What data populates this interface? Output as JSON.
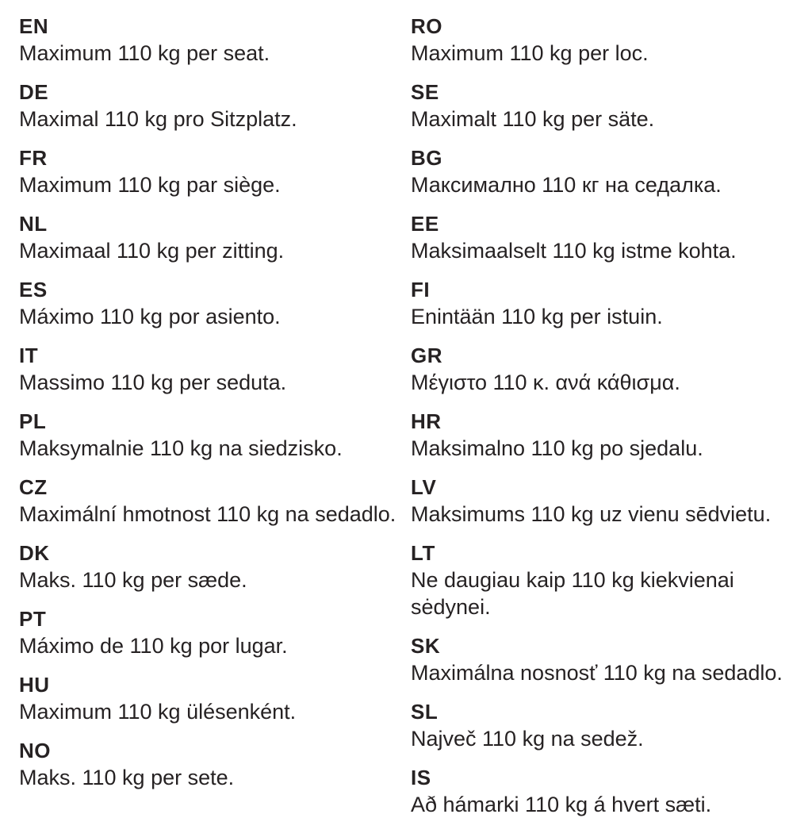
{
  "page": {
    "background_color": "#ffffff",
    "text_color": "#262223",
    "description": "Multilingual seat weight-limit notice"
  },
  "columns": {
    "left": [
      {
        "code": "EN",
        "text": "Maximum 110 kg per seat."
      },
      {
        "code": "DE",
        "text": "Maximal 110 kg pro Sitzplatz."
      },
      {
        "code": "FR",
        "text": "Maximum 110 kg par siège."
      },
      {
        "code": "NL",
        "text": "Maximaal 110 kg per zitting."
      },
      {
        "code": "ES",
        "text": "Máximo 110 kg por asiento."
      },
      {
        "code": "IT",
        "text": "Massimo 110 kg per seduta."
      },
      {
        "code": "PL",
        "text": "Maksymalnie 110 kg na siedzisko."
      },
      {
        "code": "CZ",
        "text": "Maximální hmotnost 110 kg na sedadlo."
      },
      {
        "code": "DK",
        "text": "Maks. 110 kg per sæde."
      },
      {
        "code": "PT",
        "text": "Máximo de 110 kg por lugar."
      },
      {
        "code": "HU",
        "text": "Maximum 110 kg ülésenként."
      },
      {
        "code": "NO",
        "text": "Maks. 110 kg per sete."
      }
    ],
    "right": [
      {
        "code": "RO",
        "text": "Maximum 110 kg per loc."
      },
      {
        "code": "SE",
        "text": "Maximalt 110 kg per säte."
      },
      {
        "code": "BG",
        "text": "Максимално 110 кг на седалка."
      },
      {
        "code": "EE",
        "text": "Maksimaalselt 110 kg istme kohta."
      },
      {
        "code": "FI",
        "text": "Enintään 110 kg per istuin."
      },
      {
        "code": "GR",
        "text": "Μέγιστο 110 κ. ανά κάθισμα."
      },
      {
        "code": "HR",
        "text": "Maksimalno 110 kg po sjedalu."
      },
      {
        "code": "LV",
        "text": "Maksimums 110 kg uz vienu sēdvietu."
      },
      {
        "code": "LT",
        "text": "Ne daugiau kaip 110 kg kiekvienai sėdynei."
      },
      {
        "code": "SK",
        "text": "Maximálna nosnosť 110 kg na sedadlo."
      },
      {
        "code": "SL",
        "text": "Največ 110 kg na sedež."
      },
      {
        "code": "IS",
        "text": "Að hámarki 110 kg á hvert sæti."
      }
    ]
  }
}
